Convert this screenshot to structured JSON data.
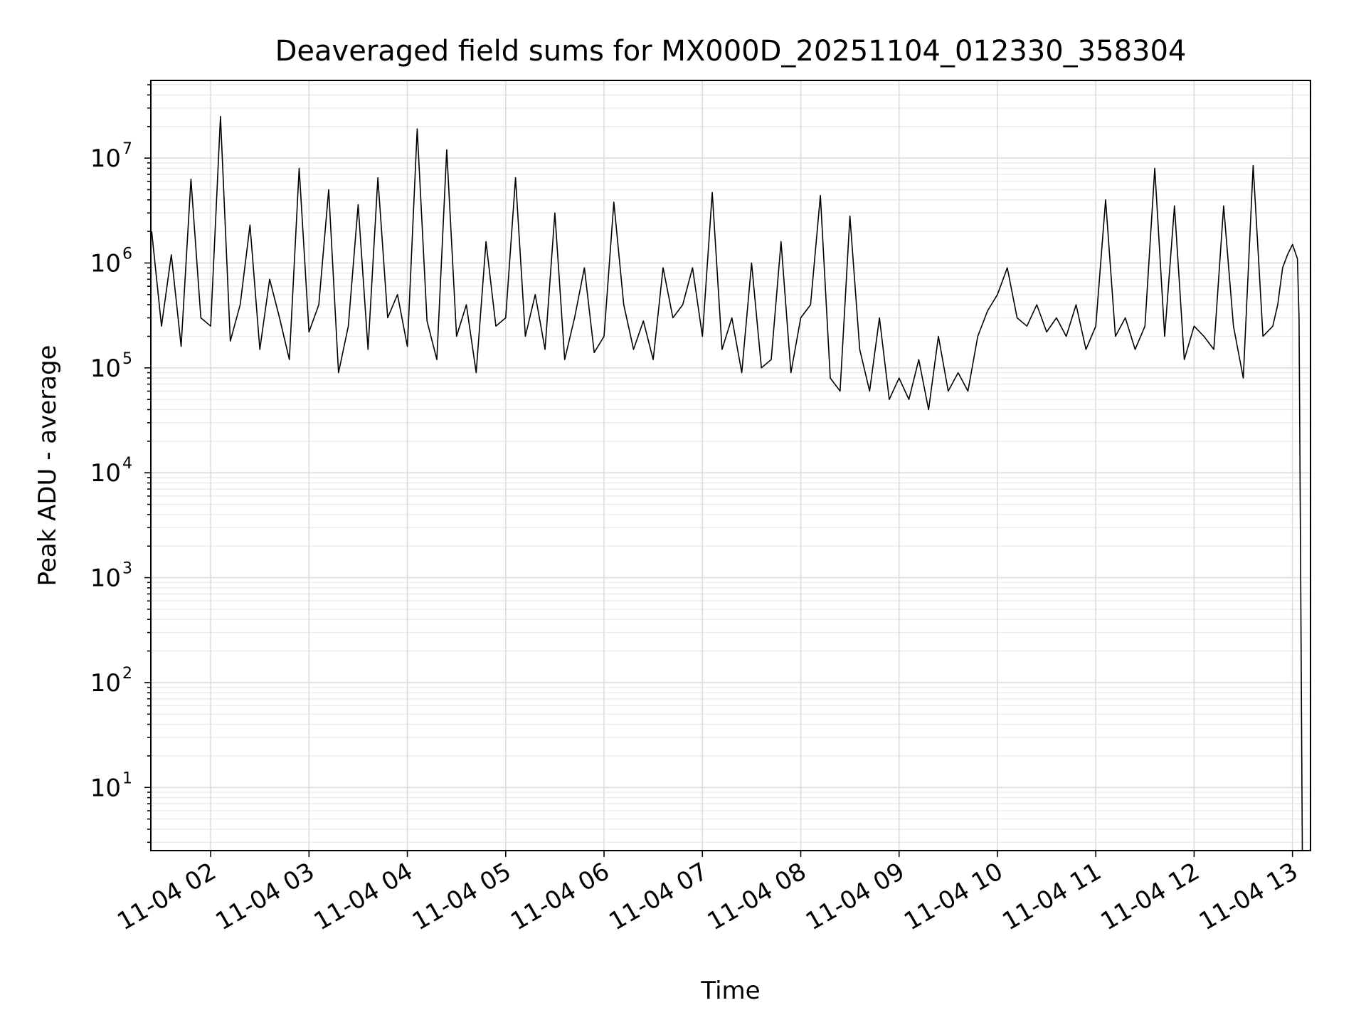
{
  "chart_data": {
    "type": "line",
    "title": "Deaveraged field sums for MX000D_20251104_012330_358304",
    "xlabel": "Time",
    "ylabel": "Peak ADU - average",
    "yscale": "log",
    "ylim": [
      2.5,
      55000000
    ],
    "xlim": [
      "2025-11-04 01:23:30",
      "2025-11-04 13:11:00"
    ],
    "grid": true,
    "x_ticks": [
      {
        "t": "2025-11-04 02:00",
        "label": "11-04 02"
      },
      {
        "t": "2025-11-04 03:00",
        "label": "11-04 03"
      },
      {
        "t": "2025-11-04 04:00",
        "label": "11-04 04"
      },
      {
        "t": "2025-11-04 05:00",
        "label": "11-04 05"
      },
      {
        "t": "2025-11-04 06:00",
        "label": "11-04 06"
      },
      {
        "t": "2025-11-04 07:00",
        "label": "11-04 07"
      },
      {
        "t": "2025-11-04 08:00",
        "label": "11-04 08"
      },
      {
        "t": "2025-11-04 09:00",
        "label": "11-04 09"
      },
      {
        "t": "2025-11-04 10:00",
        "label": "11-04 10"
      },
      {
        "t": "2025-11-04 11:00",
        "label": "11-04 11"
      },
      {
        "t": "2025-11-04 12:00",
        "label": "11-04 12"
      },
      {
        "t": "2025-11-04 13:00",
        "label": "11-04 13"
      }
    ],
    "y_ticks": [
      {
        "value": 10,
        "base": "10",
        "exp": "1"
      },
      {
        "value": 100,
        "base": "10",
        "exp": "2"
      },
      {
        "value": 1000,
        "base": "10",
        "exp": "3"
      },
      {
        "value": 10000,
        "base": "10",
        "exp": "4"
      },
      {
        "value": 100000,
        "base": "10",
        "exp": "5"
      },
      {
        "value": 1000000,
        "base": "10",
        "exp": "6"
      },
      {
        "value": 10000000,
        "base": "10",
        "exp": "7"
      }
    ],
    "line_color": "#000000",
    "grid_color": "#dddddd",
    "series": [
      {
        "x": [
          "2025-11-04 01:24",
          "2025-11-04 01:30",
          "2025-11-04 01:36",
          "2025-11-04 01:42",
          "2025-11-04 01:48",
          "2025-11-04 01:54",
          "2025-11-04 02:00",
          "2025-11-04 02:06",
          "2025-11-04 02:12",
          "2025-11-04 02:18",
          "2025-11-04 02:24",
          "2025-11-04 02:30",
          "2025-11-04 02:36",
          "2025-11-04 02:42",
          "2025-11-04 02:48",
          "2025-11-04 02:54",
          "2025-11-04 03:00",
          "2025-11-04 03:06",
          "2025-11-04 03:12",
          "2025-11-04 03:18",
          "2025-11-04 03:24",
          "2025-11-04 03:30",
          "2025-11-04 03:36",
          "2025-11-04 03:42",
          "2025-11-04 03:48",
          "2025-11-04 03:54",
          "2025-11-04 04:00",
          "2025-11-04 04:06",
          "2025-11-04 04:12",
          "2025-11-04 04:18",
          "2025-11-04 04:24",
          "2025-11-04 04:30",
          "2025-11-04 04:36",
          "2025-11-04 04:42",
          "2025-11-04 04:48",
          "2025-11-04 04:54",
          "2025-11-04 05:00",
          "2025-11-04 05:06",
          "2025-11-04 05:12",
          "2025-11-04 05:18",
          "2025-11-04 05:24",
          "2025-11-04 05:30",
          "2025-11-04 05:36",
          "2025-11-04 05:42",
          "2025-11-04 05:48",
          "2025-11-04 05:54",
          "2025-11-04 06:00",
          "2025-11-04 06:06",
          "2025-11-04 06:12",
          "2025-11-04 06:18",
          "2025-11-04 06:24",
          "2025-11-04 06:30",
          "2025-11-04 06:36",
          "2025-11-04 06:42",
          "2025-11-04 06:48",
          "2025-11-04 06:54",
          "2025-11-04 07:00",
          "2025-11-04 07:06",
          "2025-11-04 07:12",
          "2025-11-04 07:18",
          "2025-11-04 07:24",
          "2025-11-04 07:30",
          "2025-11-04 07:36",
          "2025-11-04 07:42",
          "2025-11-04 07:48",
          "2025-11-04 07:54",
          "2025-11-04 08:00",
          "2025-11-04 08:06",
          "2025-11-04 08:12",
          "2025-11-04 08:18",
          "2025-11-04 08:24",
          "2025-11-04 08:30",
          "2025-11-04 08:36",
          "2025-11-04 08:42",
          "2025-11-04 08:48",
          "2025-11-04 08:54",
          "2025-11-04 09:00",
          "2025-11-04 09:06",
          "2025-11-04 09:12",
          "2025-11-04 09:18",
          "2025-11-04 09:24",
          "2025-11-04 09:30",
          "2025-11-04 09:36",
          "2025-11-04 09:42",
          "2025-11-04 09:48",
          "2025-11-04 09:54",
          "2025-11-04 10:00",
          "2025-11-04 10:06",
          "2025-11-04 10:12",
          "2025-11-04 10:18",
          "2025-11-04 10:24",
          "2025-11-04 10:30",
          "2025-11-04 10:36",
          "2025-11-04 10:42",
          "2025-11-04 10:48",
          "2025-11-04 10:54",
          "2025-11-04 11:00",
          "2025-11-04 11:06",
          "2025-11-04 11:12",
          "2025-11-04 11:18",
          "2025-11-04 11:24",
          "2025-11-04 11:30",
          "2025-11-04 11:36",
          "2025-11-04 11:42",
          "2025-11-04 11:48",
          "2025-11-04 11:54",
          "2025-11-04 12:00",
          "2025-11-04 12:06",
          "2025-11-04 12:12",
          "2025-11-04 12:18",
          "2025-11-04 12:24",
          "2025-11-04 12:30",
          "2025-11-04 12:36",
          "2025-11-04 12:42",
          "2025-11-04 12:48",
          "2025-11-04 12:51",
          "2025-11-04 12:54",
          "2025-11-04 12:57",
          "2025-11-04 13:00",
          "2025-11-04 13:03",
          "2025-11-04 13:04",
          "2025-11-04 13:05",
          "2025-11-04 13:06"
        ],
        "values": [
          2000000,
          250000,
          1200000,
          160000,
          6300000,
          300000,
          250000,
          25000000,
          180000,
          400000,
          2300000,
          150000,
          700000,
          300000,
          120000,
          8000000,
          220000,
          400000,
          5000000,
          90000,
          250000,
          3600000,
          150000,
          6500000,
          300000,
          500000,
          160000,
          19000000,
          280000,
          120000,
          12000000,
          200000,
          400000,
          90000,
          1600000,
          250000,
          300000,
          6500000,
          200000,
          500000,
          150000,
          3000000,
          120000,
          300000,
          900000,
          140000,
          200000,
          3800000,
          400000,
          150000,
          280000,
          120000,
          900000,
          300000,
          400000,
          900000,
          200000,
          4700000,
          150000,
          300000,
          90000,
          1000000,
          100000,
          120000,
          1600000,
          90000,
          300000,
          400000,
          4400000,
          80000,
          60000,
          2800000,
          150000,
          60000,
          300000,
          50000,
          80000,
          50000,
          120000,
          40000,
          200000,
          60000,
          90000,
          60000,
          200000,
          350000,
          500000,
          900000,
          300000,
          250000,
          400000,
          220000,
          300000,
          200000,
          400000,
          150000,
          250000,
          4000000,
          200000,
          300000,
          150000,
          250000,
          8000000,
          200000,
          3500000,
          120000,
          250000,
          200000,
          150000,
          3500000,
          250000,
          80000,
          8500000,
          200000,
          250000,
          400000,
          900000,
          1200000,
          1500000,
          1100000,
          300000,
          1000,
          2.5
        ]
      }
    ]
  }
}
